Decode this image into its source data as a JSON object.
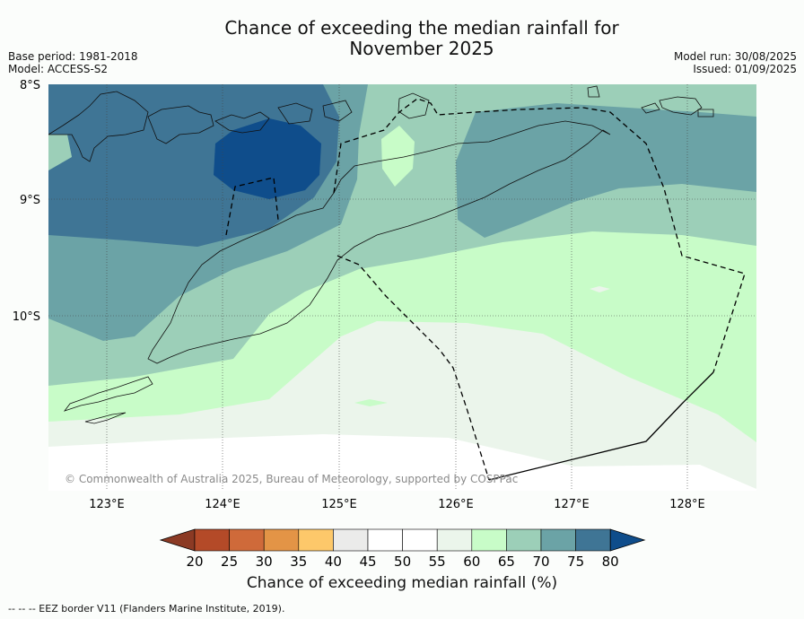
{
  "header": {
    "title_line1": "Chance of exceeding the median rainfall for",
    "title_line2": "November 2025",
    "base_period": "Base period: 1981-2018",
    "model": "Model: ACCESS-S2",
    "model_run": "Model run: 30/08/2025",
    "issued": "Issued: 01/09/2025"
  },
  "map": {
    "lat_labels": [
      "8°S",
      "9°S",
      "10°S"
    ],
    "lon_labels": [
      "123°E",
      "124°E",
      "125°E",
      "126°E",
      "127°E",
      "128°E"
    ],
    "copyright": "© Commonwealth of Australia 2025, Bureau of Meteorology, supported by COSPPac"
  },
  "colorbar": {
    "ticks": [
      "20",
      "25",
      "30",
      "35",
      "40",
      "45",
      "50",
      "55",
      "60",
      "65",
      "70",
      "75",
      "80"
    ],
    "colors": [
      "#8b3a24",
      "#b44a28",
      "#cf6a3a",
      "#e39446",
      "#fdc86a",
      "#ebebea",
      "#ffffff",
      "#ffffff",
      "#ebf5eb",
      "#c8fcc8",
      "#9ccfb8",
      "#6ba3a6",
      "#3f7595",
      "#0f4d8b"
    ],
    "title": "Chance of exceeding median rainfall (%)"
  },
  "legend": {
    "eez_note": "--  --  -- EEZ border V11 (Flanders Marine Institute, 2019)."
  }
}
